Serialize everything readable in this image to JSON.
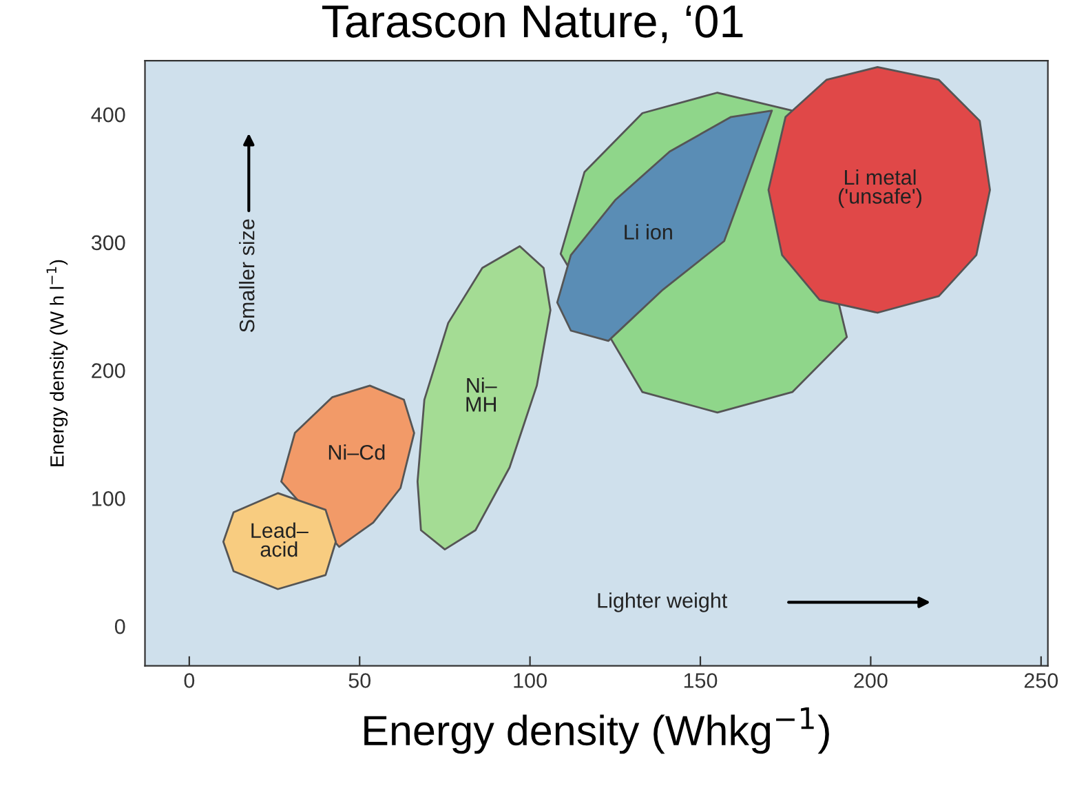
{
  "chart_data": {
    "type": "area",
    "title": "Tarascon Nature, ‘01",
    "xlabel": "Energy density (Whkg$^{−1}$)",
    "ylabel": "Energy density (W h l$^{−1}$)",
    "xlim": [
      -13,
      252
    ],
    "ylim": [
      -31,
      442
    ],
    "xticks": [
      0,
      50,
      100,
      150,
      200,
      250
    ],
    "yticks": [
      0,
      100,
      200,
      300,
      400
    ],
    "grid": false,
    "legend": false,
    "annotations": [
      "Smaller size",
      "Lighter weight"
    ],
    "series": [
      {
        "color": "#8fd68a",
        "x": [
          109,
          116,
          133,
          155,
          177,
          193,
          177,
          155,
          133
        ],
        "values": [
          291,
          355,
          401,
          417,
          403,
          226,
          183,
          167,
          183
        ]
      },
      {
        "name": "Li ion",
        "color": "#5a8db5",
        "x": [
          108,
          112,
          125,
          141,
          159,
          171,
          157,
          139,
          123,
          112
        ],
        "values": [
          253,
          290,
          333,
          371,
          398,
          403,
          301,
          263,
          223,
          231
        ]
      },
      {
        "name": "Li metal\n('unsafe')",
        "color": "#e04848",
        "x": [
          170,
          175,
          187,
          202,
          220,
          232,
          235,
          231,
          220,
          202,
          185,
          174
        ],
        "values": [
          341,
          398,
          427,
          437,
          427,
          395,
          341,
          290,
          258,
          245,
          255,
          290
        ]
      },
      {
        "name": "Ni–\nMH",
        "color": "#a4dc94",
        "x": [
          67,
          69,
          76,
          86,
          97,
          104,
          106,
          102,
          94,
          84,
          75,
          68
        ],
        "values": [
          113,
          177,
          237,
          280,
          297,
          280,
          247,
          188,
          124,
          75,
          60,
          75
        ]
      },
      {
        "name": "Ni–Cd",
        "color": "#f29a68",
        "x": [
          27,
          31,
          42,
          53,
          63,
          66,
          62,
          54,
          44
        ],
        "values": [
          113,
          151,
          179,
          188,
          177,
          151,
          108,
          81,
          62
        ]
      },
      {
        "name": "Lead–\nacid",
        "color": "#f8cc80",
        "x": [
          10,
          13,
          26,
          40,
          43,
          40,
          26,
          13
        ],
        "values": [
          66,
          89,
          104,
          91,
          66,
          40,
          29,
          43
        ]
      }
    ]
  }
}
